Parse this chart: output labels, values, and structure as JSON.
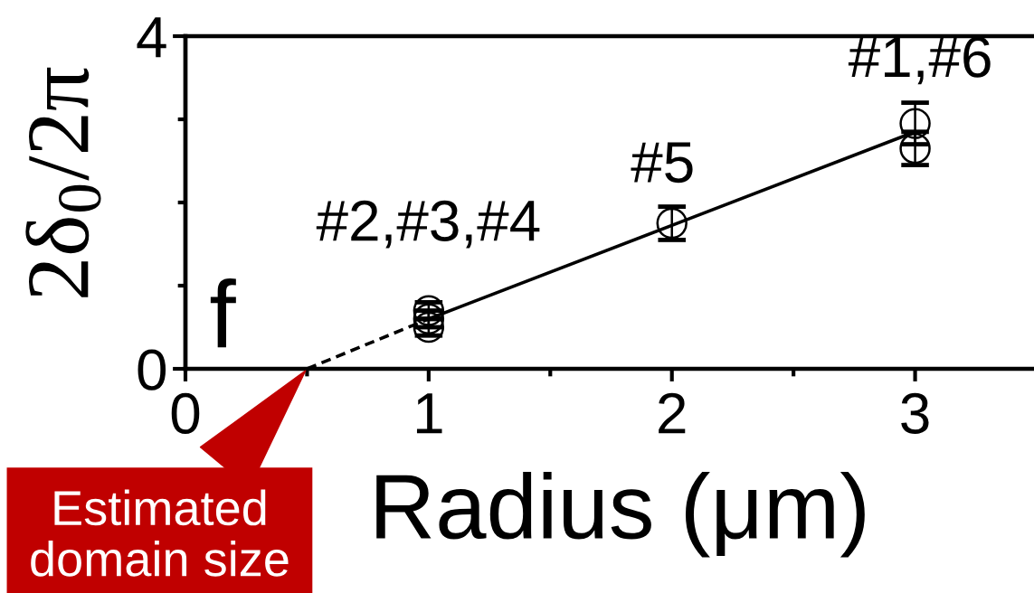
{
  "chart_data": {
    "type": "scatter",
    "xlabel": "Radius (μm)",
    "ylabel": "2δ$_{0}$/2π",
    "xlim": [
      0,
      3.5
    ],
    "ylim": [
      0,
      4
    ],
    "xticks": [
      0,
      {
        "value": 0.5,
        "label": null
      },
      1,
      {
        "value": 1.5,
        "label": null
      },
      2,
      {
        "value": 2.5,
        "label": null
      },
      3
    ],
    "yticks": [
      0,
      {
        "value": 1,
        "label": null
      },
      {
        "value": 2,
        "label": null
      },
      {
        "value": 3,
        "label": null
      },
      4
    ],
    "grid": false,
    "legend": false,
    "series": [
      {
        "x": [
          1,
          1,
          1,
          2,
          3,
          3
        ],
        "values": [
          0.7,
          0.6,
          0.5,
          1.75,
          2.95,
          2.65
        ],
        "errors": [
          0.1,
          0.1,
          0.1,
          0.2,
          0.25,
          0.2
        ],
        "color": "#000000",
        "marker": "circle"
      },
      {
        "type": "line",
        "x": [
          0.5,
          1
        ],
        "values": [
          0,
          0.6
        ],
        "color": "#000000",
        "line_style": "dashed",
        "marker": "none"
      },
      {
        "type": "line",
        "x": [
          1,
          3
        ],
        "values": [
          0.6,
          2.85
        ],
        "color": "#000000",
        "line_style": "solid",
        "marker": "none"
      }
    ],
    "annotations": [
      "f",
      {
        "text": "#2,#3,#4",
        "x": 1,
        "y": 0.6
      },
      {
        "text": "#5",
        "x": 2,
        "y": 1.75
      },
      {
        "text": "#1,#6",
        "x": 3,
        "y": 2.95
      },
      {
        "text": "Estimated\ndomain size",
        "x": 0.5,
        "y": 0
      }
    ]
  }
}
